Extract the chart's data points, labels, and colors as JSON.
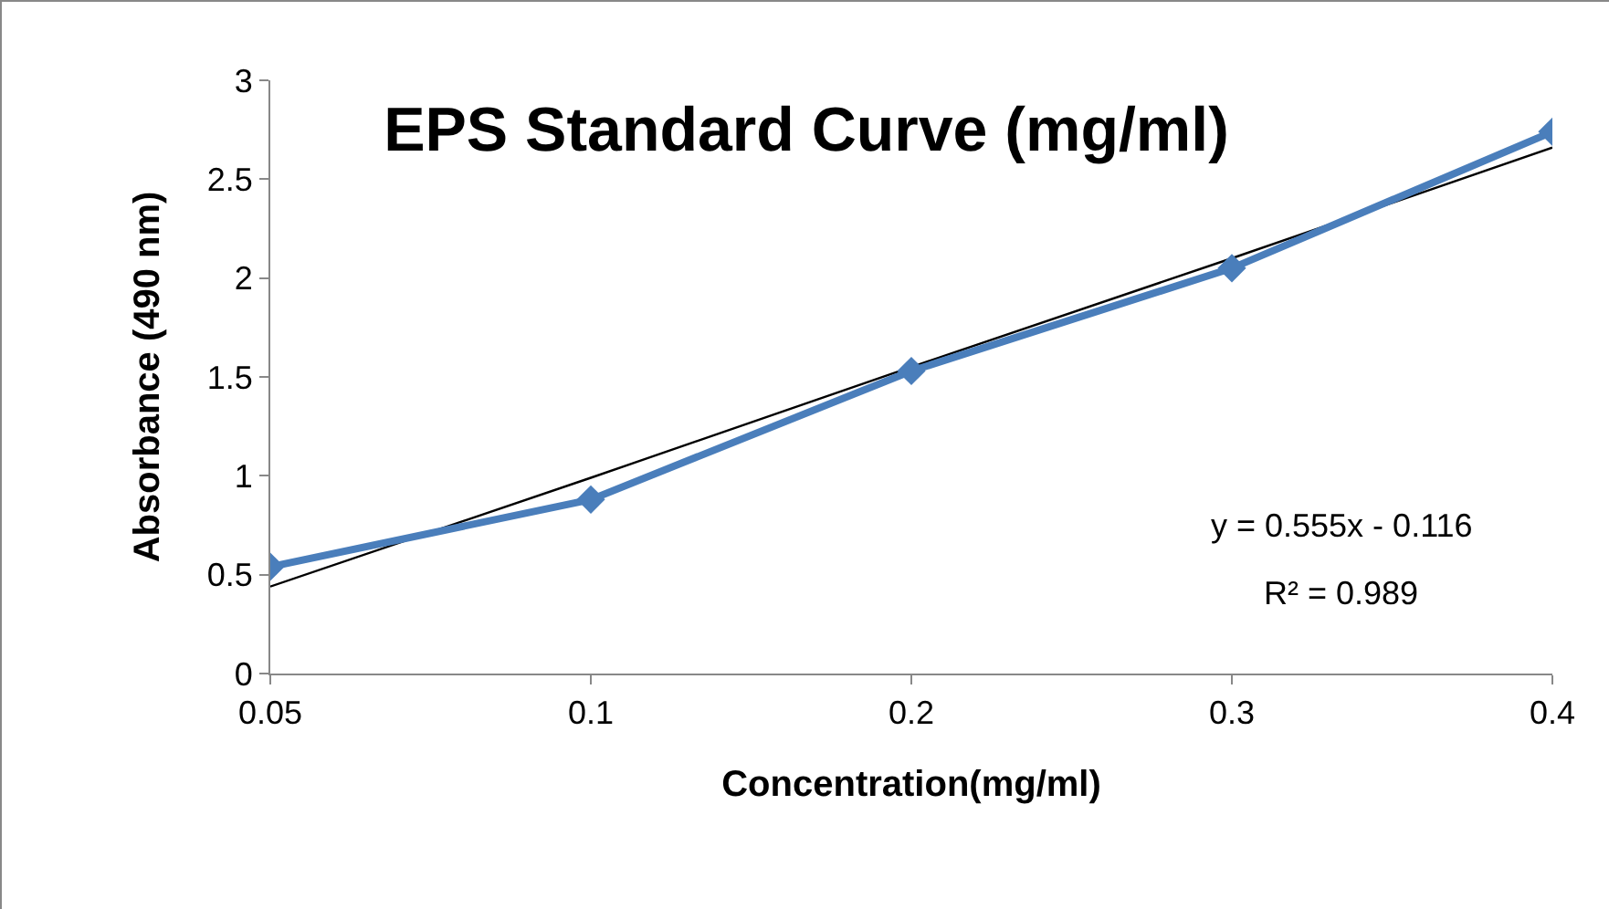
{
  "chart_data": {
    "type": "line",
    "title": "EPS Standard Curve (mg/ml)",
    "xlabel": "Concentration(mg/ml)",
    "ylabel": "Absorbance (490 nm)",
    "categories": [
      "0.05",
      "0.1",
      "0.2",
      "0.3",
      "0.4"
    ],
    "series": [
      {
        "color": "#4a7ebb",
        "values": [
          0.54,
          0.88,
          1.53,
          2.05,
          2.74
        ],
        "marker": "diamond"
      },
      {
        "type": "line",
        "color": "#000000",
        "values": [
          0.44,
          0.99,
          1.55,
          2.1,
          2.66
        ],
        "marker": "none"
      }
    ],
    "ylim": [
      0,
      3
    ],
    "yticks": [
      0,
      0.5,
      1,
      1.5,
      2,
      2.5,
      3
    ],
    "annotations": [
      "y = 0.555x - 0.116",
      "R² = 0.989"
    ],
    "grid": false,
    "line_style": "solid"
  }
}
